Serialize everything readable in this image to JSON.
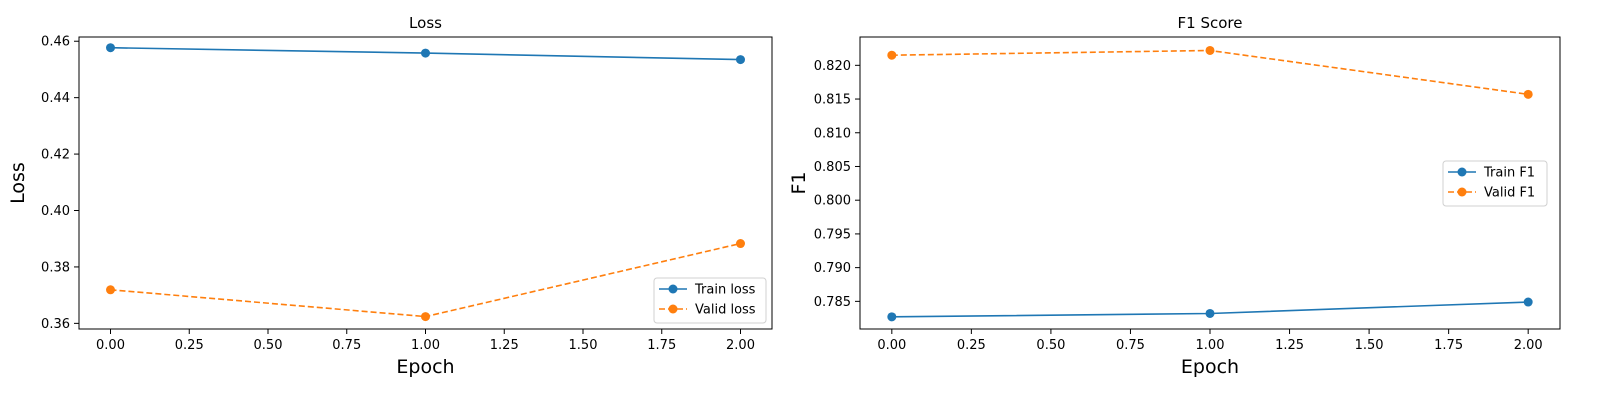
{
  "chart_data": [
    {
      "type": "line",
      "title": "Loss",
      "xlabel": "Epoch",
      "ylabel": "Loss",
      "xlim": [
        -0.1,
        2.1
      ],
      "ylim": [
        0.358,
        0.4615
      ],
      "xticks": [
        "0.00",
        "0.25",
        "0.50",
        "0.75",
        "1.00",
        "1.25",
        "1.50",
        "1.75",
        "2.00"
      ],
      "yticks": [
        "0.36",
        "0.38",
        "0.40",
        "0.42",
        "0.44",
        "0.46"
      ],
      "grid": false,
      "legend": "lower-right",
      "x": [
        0,
        1,
        2
      ],
      "series": [
        {
          "name": "Train loss",
          "values": [
            0.4577,
            0.4558,
            0.4535
          ],
          "color": "#1f77b4",
          "style": "solid"
        },
        {
          "name": "Valid loss",
          "values": [
            0.3719,
            0.3624,
            0.3883
          ],
          "color": "#ff7f0e",
          "style": "dashed"
        }
      ]
    },
    {
      "type": "line",
      "title": "F1 Score",
      "xlabel": "Epoch",
      "ylabel": "F1",
      "xlim": [
        -0.1,
        2.1
      ],
      "ylim": [
        0.7809,
        0.8242
      ],
      "xticks": [
        "0.00",
        "0.25",
        "0.50",
        "0.75",
        "1.00",
        "1.25",
        "1.50",
        "1.75",
        "2.00"
      ],
      "yticks": [
        "0.785",
        "0.790",
        "0.795",
        "0.800",
        "0.805",
        "0.810",
        "0.815",
        "0.820"
      ],
      "grid": false,
      "legend": "center-right",
      "x": [
        0,
        1,
        2
      ],
      "series": [
        {
          "name": "Train F1",
          "values": [
            0.7827,
            0.7832,
            0.7849
          ],
          "color": "#1f77b4",
          "style": "solid"
        },
        {
          "name": "Valid F1",
          "values": [
            0.8215,
            0.8222,
            0.8157
          ],
          "color": "#ff7f0e",
          "style": "dashed"
        }
      ]
    }
  ]
}
